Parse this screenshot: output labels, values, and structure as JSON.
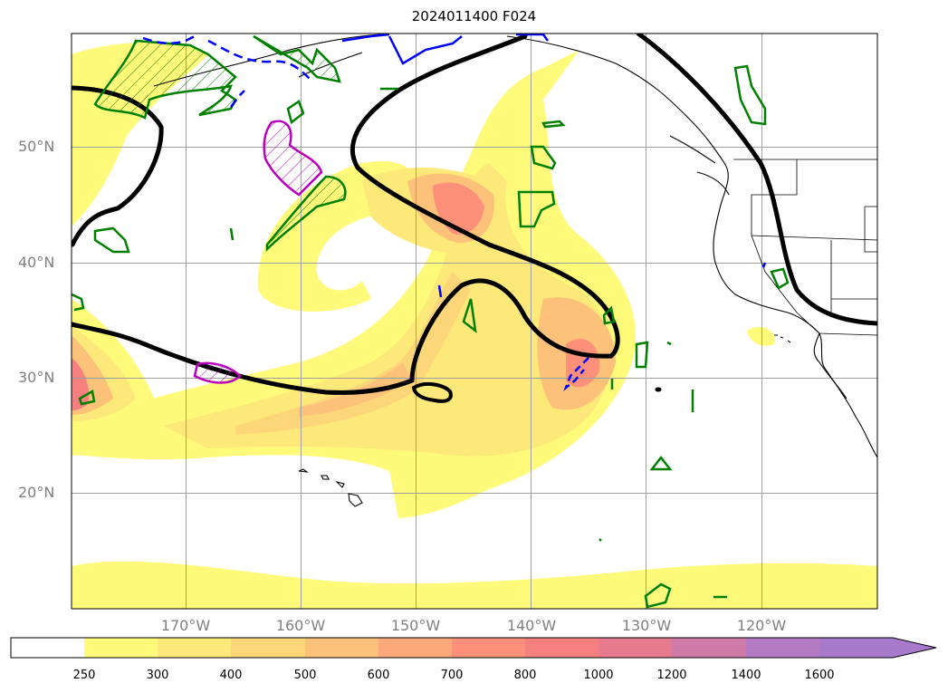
{
  "title": "2024011400 F024",
  "map": {
    "lat_labels": [
      "50°N",
      "40°N",
      "30°N",
      "20°N"
    ],
    "lon_labels": [
      "170°W",
      "160°W",
      "150°W",
      "140°W",
      "130°W",
      "120°W"
    ],
    "fill_colors": [
      "#fffa7a",
      "#fde87a",
      "#fdd67a",
      "#fdc27a",
      "#fda87a",
      "#fc907a",
      "#f58080",
      "#e87a90",
      "#d07aa8",
      "#b47ac4",
      "#a87acc"
    ],
    "contour_colors": {
      "jet": "#000000",
      "green": "#008000",
      "blue": "#0000ff",
      "magenta": "#bb00bb"
    }
  },
  "colorbar": {
    "ticks": [
      "250",
      "300",
      "400",
      "500",
      "600",
      "700",
      "800",
      "1000",
      "1200",
      "1400",
      "1600"
    ]
  }
}
